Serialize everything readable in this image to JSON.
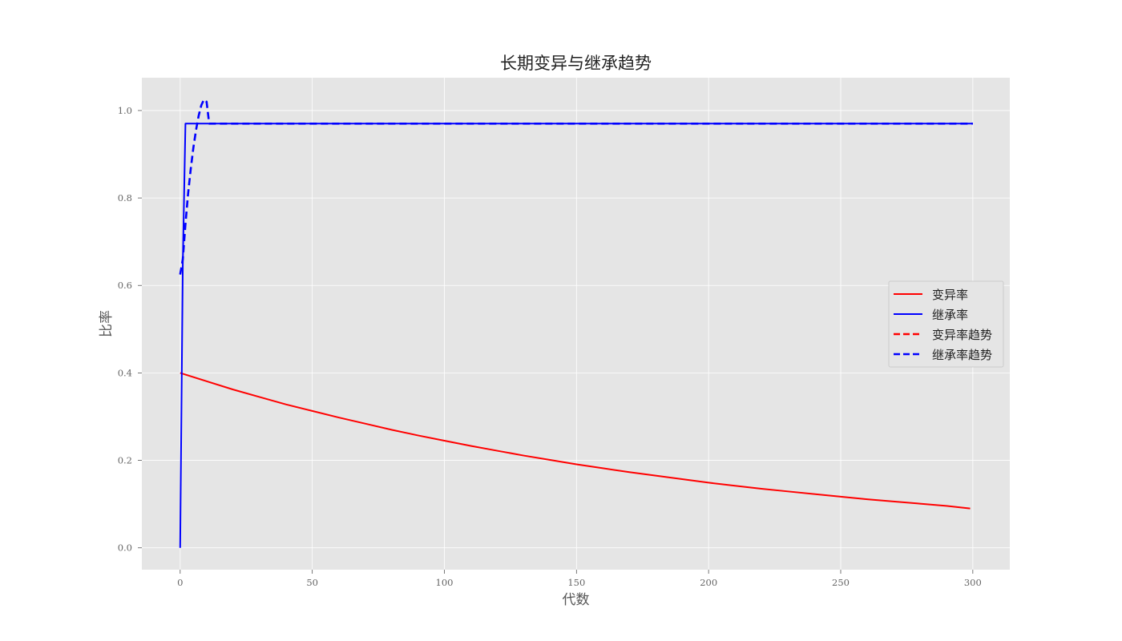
{
  "chart_data": {
    "type": "line",
    "title": "长期变异与继承趋势",
    "xlabel": "代数",
    "ylabel": "比率",
    "xlim": [
      -14.5,
      314
    ],
    "ylim": [
      -0.05,
      1.075
    ],
    "xticks": [
      0,
      50,
      100,
      150,
      200,
      250,
      300
    ],
    "yticks": [
      0.0,
      0.2,
      0.4,
      0.6,
      0.8,
      1.0
    ],
    "grid": true,
    "legend_position": "center-right",
    "colors": {
      "plot_background": "#e5e5e5",
      "grid": "#ffffff"
    },
    "series": [
      {
        "name": "变异率",
        "color": "#ff0000",
        "style": "solid",
        "x": [
          0,
          10,
          20,
          30,
          40,
          50,
          60,
          70,
          80,
          90,
          100,
          110,
          120,
          130,
          140,
          150,
          160,
          170,
          180,
          190,
          200,
          210,
          220,
          230,
          240,
          250,
          260,
          270,
          280,
          290,
          299
        ],
        "y": [
          0.4,
          0.381,
          0.362,
          0.345,
          0.328,
          0.313,
          0.298,
          0.284,
          0.27,
          0.257,
          0.245,
          0.233,
          0.222,
          0.211,
          0.201,
          0.191,
          0.182,
          0.173,
          0.165,
          0.157,
          0.149,
          0.142,
          0.135,
          0.129,
          0.123,
          0.117,
          0.111,
          0.106,
          0.101,
          0.096,
          0.09
        ]
      },
      {
        "name": "继承率",
        "color": "#0000ff",
        "style": "solid",
        "x": [
          0,
          1,
          2,
          300
        ],
        "y": [
          0.0,
          0.65,
          0.97,
          0.97
        ]
      },
      {
        "name": "变异率趋势",
        "color": "#ff0000",
        "style": "dashed",
        "x": [],
        "y": []
      },
      {
        "name": "继承率趋势",
        "color": "#0000ff",
        "style": "dashed",
        "x": [
          0,
          1,
          2,
          3,
          4,
          5,
          6,
          7,
          8,
          9,
          10,
          11,
          12,
          300
        ],
        "y": [
          0.625,
          0.66,
          0.74,
          0.81,
          0.866,
          0.915,
          0.955,
          0.988,
          1.012,
          1.025,
          1.02,
          0.97,
          0.97,
          0.97
        ]
      }
    ]
  }
}
